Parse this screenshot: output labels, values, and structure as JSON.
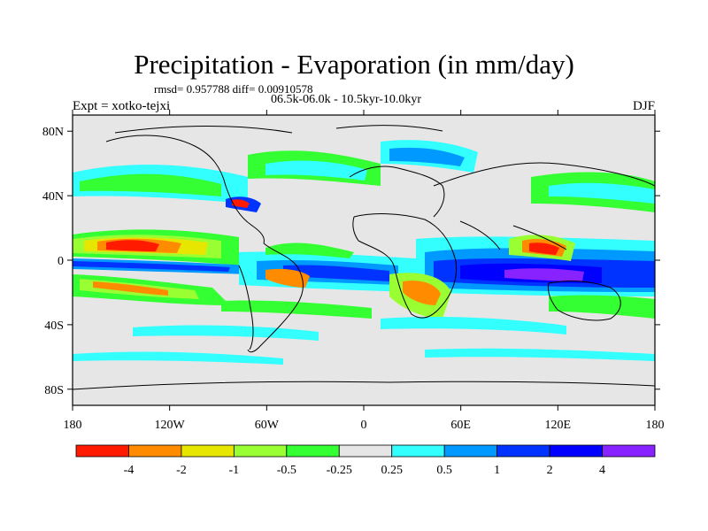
{
  "title": "Precipitation - Evaporation (in mm/day)",
  "stats": "rmsd= 0.957788 diff= 0.00910578",
  "period": "06.5k-06.0k - 10.5kyr-10.0kyr",
  "experiment": "Expt = xotko-tejxi",
  "season": "DJF",
  "lat_labels": [
    "80N",
    "40N",
    "0",
    "40S",
    "80S"
  ],
  "lat_values": [
    80,
    40,
    0,
    -40,
    -80
  ],
  "lon_labels": [
    "180",
    "120W",
    "60W",
    "0",
    "60E",
    "120E",
    "180"
  ],
  "lon_values": [
    -180,
    -120,
    -60,
    0,
    60,
    120,
    180
  ],
  "colorbar": {
    "labels": [
      "-4",
      "-2",
      "-1",
      "-0.5",
      "-0.25",
      "0.25",
      "0.5",
      "1",
      "2",
      "4"
    ],
    "colors": [
      "#ff1a00",
      "#ff8c00",
      "#e6e600",
      "#99ff33",
      "#33ff33",
      "#e6e6e6",
      "#33ffff",
      "#0099ff",
      "#0033ff",
      "#0000ff",
      "#8822ff"
    ]
  },
  "colors": {
    "land_ocean_background": "#e6e6e6",
    "coastline": "#000000"
  }
}
